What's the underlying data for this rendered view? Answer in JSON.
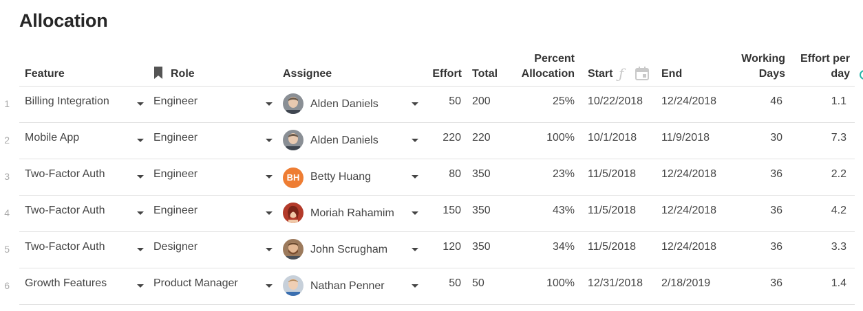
{
  "page": {
    "title": "Allocation"
  },
  "colors": {
    "accent_teal": "#26b5a9",
    "initials_bg": "#ee7d33",
    "grid_line": "#e2e2e2"
  },
  "columns": {
    "feature": "Feature",
    "role": "Role",
    "assignee": "Assignee",
    "effort": "Effort",
    "total": "Total",
    "percent_line1": "Percent",
    "percent_line2": "Allocation",
    "start": "Start",
    "end": "End",
    "working_line1": "Working",
    "working_line2": "Days",
    "effortday_line1": "Effort per",
    "effortday_line2": "day"
  },
  "header_icons": {
    "role": "bookmark-icon",
    "start_formula": "formula-icon",
    "start_date": "calendar-icon"
  },
  "rows": [
    {
      "num": "1",
      "feature": "Billing Integration",
      "role": "Engineer",
      "assignee": "Alden Daniels",
      "avatar": "photo-gray",
      "effort": "50",
      "total": "200",
      "percent": "25%",
      "start": "10/22/2018",
      "end": "12/24/2018",
      "working_days": "46",
      "effort_per_day": "1.1"
    },
    {
      "num": "2",
      "feature": "Mobile App",
      "role": "Engineer",
      "assignee": "Alden Daniels",
      "avatar": "photo-gray",
      "effort": "220",
      "total": "220",
      "percent": "100%",
      "start": "10/1/2018",
      "end": "11/9/2018",
      "working_days": "30",
      "effort_per_day": "7.3"
    },
    {
      "num": "3",
      "feature": "Two-Factor Auth",
      "role": "Engineer",
      "assignee": "Betty Huang",
      "avatar": "initials",
      "initials": "BH",
      "effort": "80",
      "total": "350",
      "percent": "23%",
      "start": "11/5/2018",
      "end": "12/24/2018",
      "working_days": "36",
      "effort_per_day": "2.2"
    },
    {
      "num": "4",
      "feature": "Two-Factor Auth",
      "role": "Engineer",
      "assignee": "Moriah Rahamim",
      "avatar": "photo-red",
      "effort": "150",
      "total": "350",
      "percent": "43%",
      "start": "11/5/2018",
      "end": "12/24/2018",
      "working_days": "36",
      "effort_per_day": "4.2"
    },
    {
      "num": "5",
      "feature": "Two-Factor Auth",
      "role": "Designer",
      "assignee": "John Scrugham",
      "avatar": "photo-brown",
      "effort": "120",
      "total": "350",
      "percent": "34%",
      "start": "11/5/2018",
      "end": "12/24/2018",
      "working_days": "36",
      "effort_per_day": "3.3"
    },
    {
      "num": "6",
      "feature": "Growth Features",
      "role": "Product Manager",
      "assignee": "Nathan Penner",
      "avatar": "photo-light",
      "effort": "50",
      "total": "50",
      "percent": "100%",
      "start": "12/31/2018",
      "end": "2/18/2019",
      "working_days": "36",
      "effort_per_day": "1.4"
    }
  ]
}
